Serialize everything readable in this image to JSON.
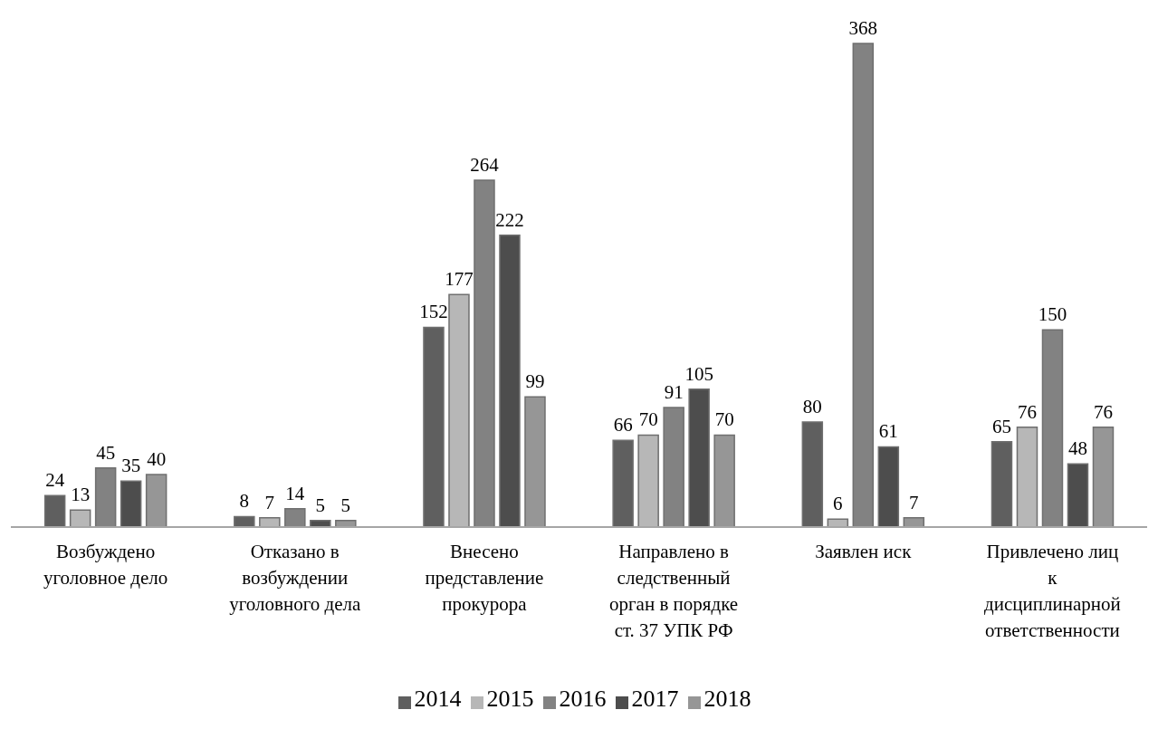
{
  "chart_data": {
    "type": "bar",
    "categories": [
      "Возбуждено уголовное дело",
      "Отказано в возбуждении уголовного дела",
      "Внесено представление прокурора",
      "Направлено в следственный орган в порядке ст. 37 УПК РФ",
      "Заявлен иск",
      "Привлечено лиц к дисциплинарной ответственности"
    ],
    "series": [
      {
        "name": "2014",
        "color": "#5f5f5f",
        "values": [
          24,
          8,
          152,
          66,
          80,
          65
        ]
      },
      {
        "name": "2015",
        "color": "#b7b7b7",
        "values": [
          13,
          7,
          177,
          70,
          6,
          76
        ]
      },
      {
        "name": "2016",
        "color": "#828282",
        "values": [
          45,
          14,
          264,
          91,
          368,
          150
        ]
      },
      {
        "name": "2017",
        "color": "#4d4d4d",
        "values": [
          35,
          5,
          222,
          105,
          61,
          48
        ]
      },
      {
        "name": "2018",
        "color": "#969696",
        "values": [
          40,
          5,
          99,
          70,
          7,
          76
        ]
      }
    ],
    "data_labels": true,
    "legend": "bottom",
    "grid": false
  }
}
